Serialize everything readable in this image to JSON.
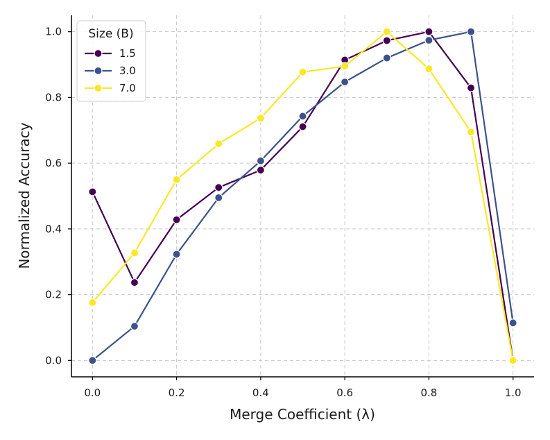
{
  "chart_data": {
    "type": "line",
    "title": "",
    "xlabel": "Merge Coefficient (λ)",
    "ylabel": "Normalized Accuracy",
    "x": [
      0.0,
      0.1,
      0.2,
      0.3,
      0.4,
      0.5,
      0.6,
      0.7,
      0.8,
      0.9,
      1.0
    ],
    "xticks": [
      "0.0",
      "0.2",
      "0.4",
      "0.6",
      "0.8",
      "1.0"
    ],
    "yticks": [
      "0.0",
      "0.2",
      "0.4",
      "0.6",
      "0.8",
      "1.0"
    ],
    "xlim": [
      -0.05,
      1.05
    ],
    "ylim": [
      -0.05,
      1.05
    ],
    "grid": true,
    "legend": {
      "title": "Size (B)",
      "position": "top-left"
    },
    "series": [
      {
        "name": "1.5",
        "color": "#440154",
        "values": [
          0.513,
          0.237,
          0.428,
          0.526,
          0.579,
          0.711,
          0.914,
          0.973,
          1.0,
          0.829,
          0.0
        ]
      },
      {
        "name": "3.0",
        "color": "#3b528b",
        "values": [
          0.0,
          0.104,
          0.323,
          0.495,
          0.607,
          0.743,
          0.847,
          0.92,
          0.974,
          1.0,
          0.114
        ]
      },
      {
        "name": "7.0",
        "color": "#fde725",
        "values": [
          0.176,
          0.327,
          0.55,
          0.659,
          0.737,
          0.877,
          0.895,
          1.0,
          0.887,
          0.695,
          0.0
        ]
      }
    ]
  }
}
